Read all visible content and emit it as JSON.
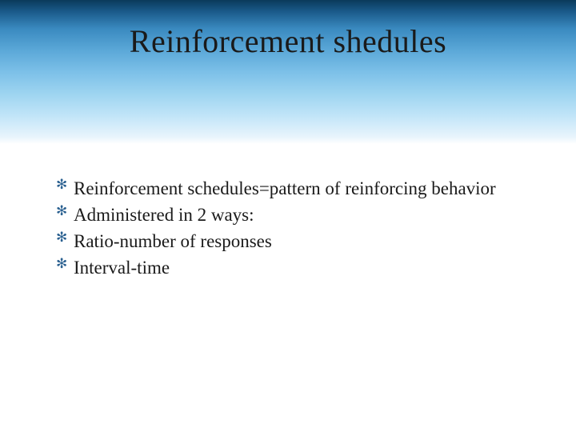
{
  "slide": {
    "title": "Reinforcement shedules",
    "title_fontsize": 40,
    "title_color": "#1a1a1a",
    "header_gradient": {
      "top": "#0a3a5a",
      "mid": "#5ba8d8",
      "bottom": "#ffffff"
    },
    "bullets": [
      "Reinforcement schedules=pattern of reinforcing behavior",
      "Administered in 2 ways:",
      "Ratio-number of responses",
      "Interval-time"
    ],
    "bullet_marker": "✻",
    "bullet_marker_color": "#2a6090",
    "body_fontsize": 23,
    "body_color": "#1a1a1a",
    "background_color": "#ffffff"
  }
}
